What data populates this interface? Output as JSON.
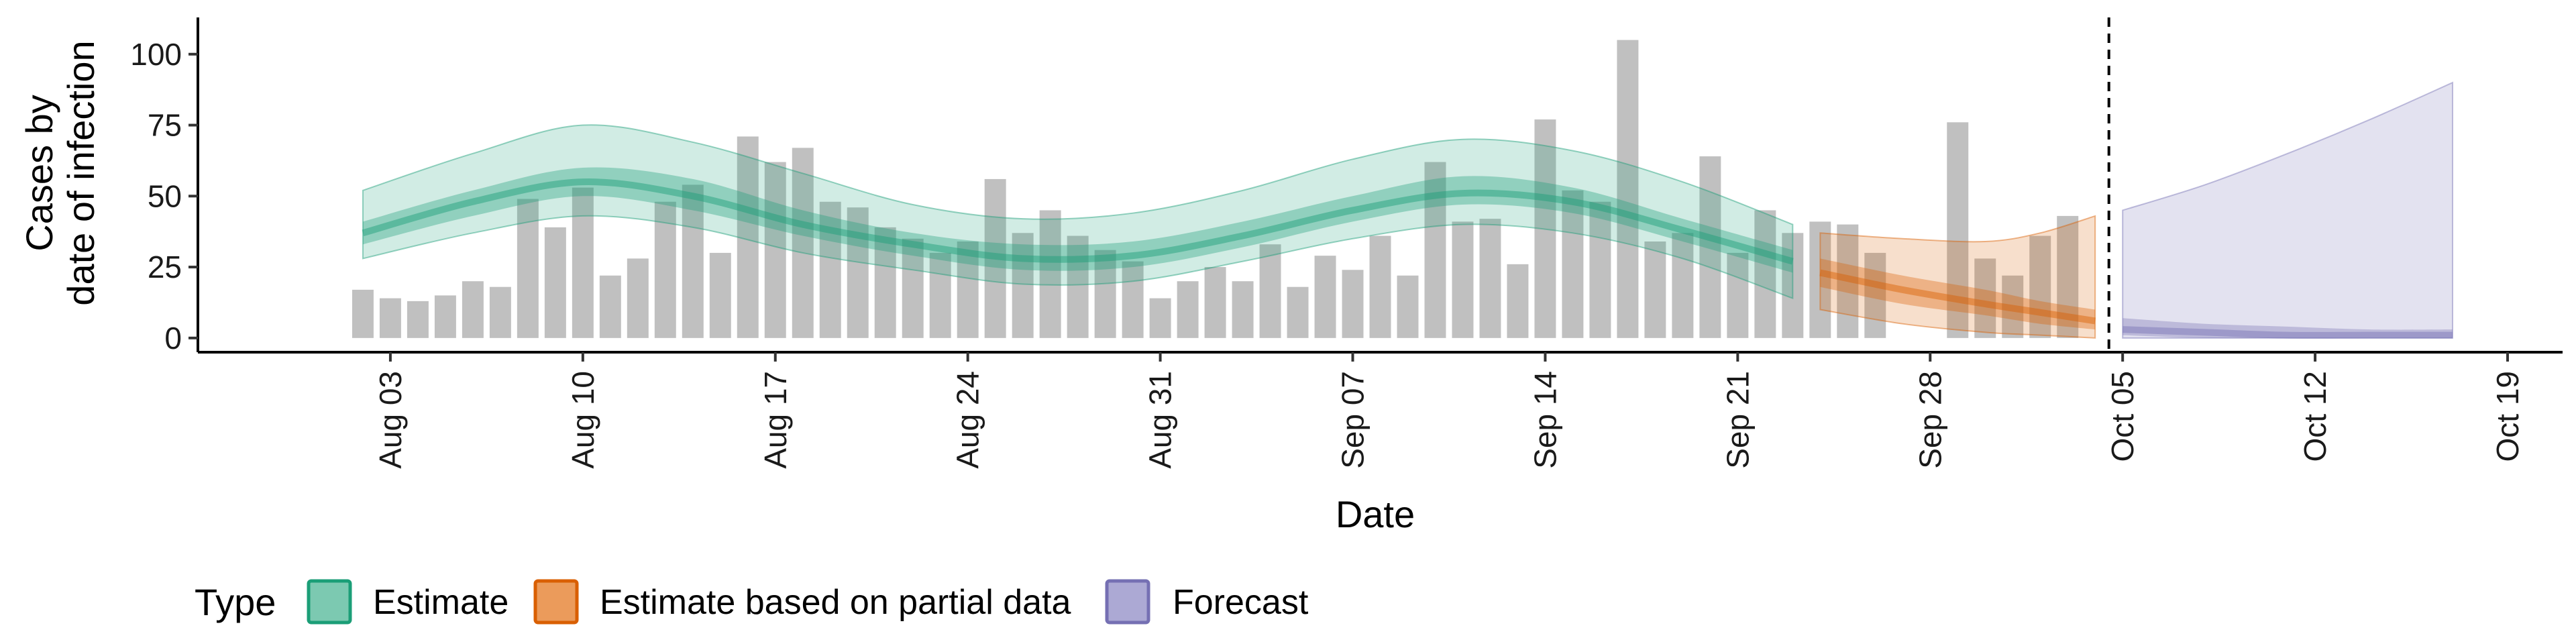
{
  "chart_data": {
    "type": "area",
    "title": "",
    "xlabel": "Date",
    "ylabel": [
      "Cases by",
      "date of infection"
    ],
    "ylim": [
      -5,
      112
    ],
    "yticks": [
      0,
      25,
      50,
      75,
      100
    ],
    "xlim": [
      "2020-07-27",
      "2020-10-21"
    ],
    "xticks": [
      "Aug 03",
      "Aug 10",
      "Aug 17",
      "Aug 24",
      "Aug 31",
      "Sep 07",
      "Sep 14",
      "Sep 21",
      "Sep 28",
      "Oct 05",
      "Oct 12",
      "Oct 19"
    ],
    "xtick_dates": [
      "2020-08-03",
      "2020-08-10",
      "2020-08-17",
      "2020-08-24",
      "2020-08-31",
      "2020-09-07",
      "2020-09-14",
      "2020-09-21",
      "2020-09-28",
      "2020-10-05",
      "2020-10-12",
      "2020-10-19"
    ],
    "grid": false,
    "forecast_date": "2020-10-04",
    "legend": {
      "title": "Type",
      "position": "bottom",
      "entries": [
        {
          "label": "Estimate",
          "color": "#1b9e77"
        },
        {
          "label": "Estimate based on partial data",
          "color": "#d95f02"
        },
        {
          "label": "Forecast",
          "color": "#7570b3"
        }
      ]
    },
    "observed_cases": {
      "color": "#8c8c8c",
      "start_date": "2020-08-02",
      "values": [
        17,
        14,
        13,
        15,
        20,
        18,
        49,
        39,
        53,
        22,
        28,
        48,
        54,
        30,
        71,
        62,
        67,
        48,
        46,
        39,
        35,
        30,
        34,
        56,
        37,
        45,
        36,
        31,
        27,
        14,
        20,
        25,
        20,
        33,
        18,
        29,
        24,
        36,
        22,
        62,
        41,
        42,
        26,
        77,
        52,
        48,
        105,
        34,
        37,
        64,
        30,
        45,
        37,
        41,
        40,
        30,
        0,
        0,
        76,
        28,
        22,
        36,
        43
      ]
    },
    "series": [
      {
        "name": "Estimate",
        "color": "#1b9e77",
        "x": [
          "2020-08-02",
          "2020-08-06",
          "2020-08-10",
          "2020-08-14",
          "2020-08-18",
          "2020-08-22",
          "2020-08-26",
          "2020-08-30",
          "2020-09-03",
          "2020-09-07",
          "2020-09-11",
          "2020-09-15",
          "2020-09-19",
          "2020-09-23"
        ],
        "median": [
          37,
          48,
          55,
          50,
          40,
          33,
          28,
          29,
          36,
          45,
          51,
          48,
          38,
          27
        ],
        "inner_lower": [
          33,
          43,
          50,
          45,
          36,
          29,
          24,
          25,
          32,
          41,
          47,
          44,
          34,
          23
        ],
        "inner_upper": [
          41,
          52,
          60,
          56,
          45,
          37,
          33,
          34,
          41,
          50,
          57,
          53,
          42,
          31
        ],
        "outer_lower": [
          28,
          37,
          43,
          39,
          30,
          24,
          19,
          20,
          27,
          35,
          40,
          37,
          28,
          14
        ],
        "outer_upper": [
          52,
          65,
          75,
          69,
          58,
          47,
          42,
          44,
          52,
          63,
          70,
          66,
          55,
          40
        ]
      },
      {
        "name": "Estimate based on partial data",
        "color": "#d95f02",
        "x": [
          "2020-09-24",
          "2020-09-27",
          "2020-09-30",
          "2020-10-02",
          "2020-10-04"
        ],
        "median": [
          23,
          17,
          12,
          9,
          6
        ],
        "inner_lower": [
          18,
          12,
          8,
          5,
          3
        ],
        "inner_upper": [
          28,
          22,
          17,
          13,
          10
        ],
        "outer_lower": [
          10,
          5,
          2,
          1,
          0
        ],
        "outer_upper": [
          37,
          35,
          34,
          37,
          43
        ]
      },
      {
        "name": "Forecast",
        "color": "#7570b3",
        "x": [
          "2020-10-05",
          "2020-10-08",
          "2020-10-11",
          "2020-10-14",
          "2020-10-17"
        ],
        "median": [
          3,
          2,
          1,
          1,
          1
        ],
        "inner_lower": [
          1,
          0,
          0,
          0,
          0
        ],
        "inner_upper": [
          7,
          5,
          4,
          3,
          3
        ],
        "outer_lower": [
          0,
          0,
          0,
          0,
          0
        ],
        "outer_upper": [
          45,
          54,
          65,
          77,
          90
        ]
      }
    ]
  }
}
